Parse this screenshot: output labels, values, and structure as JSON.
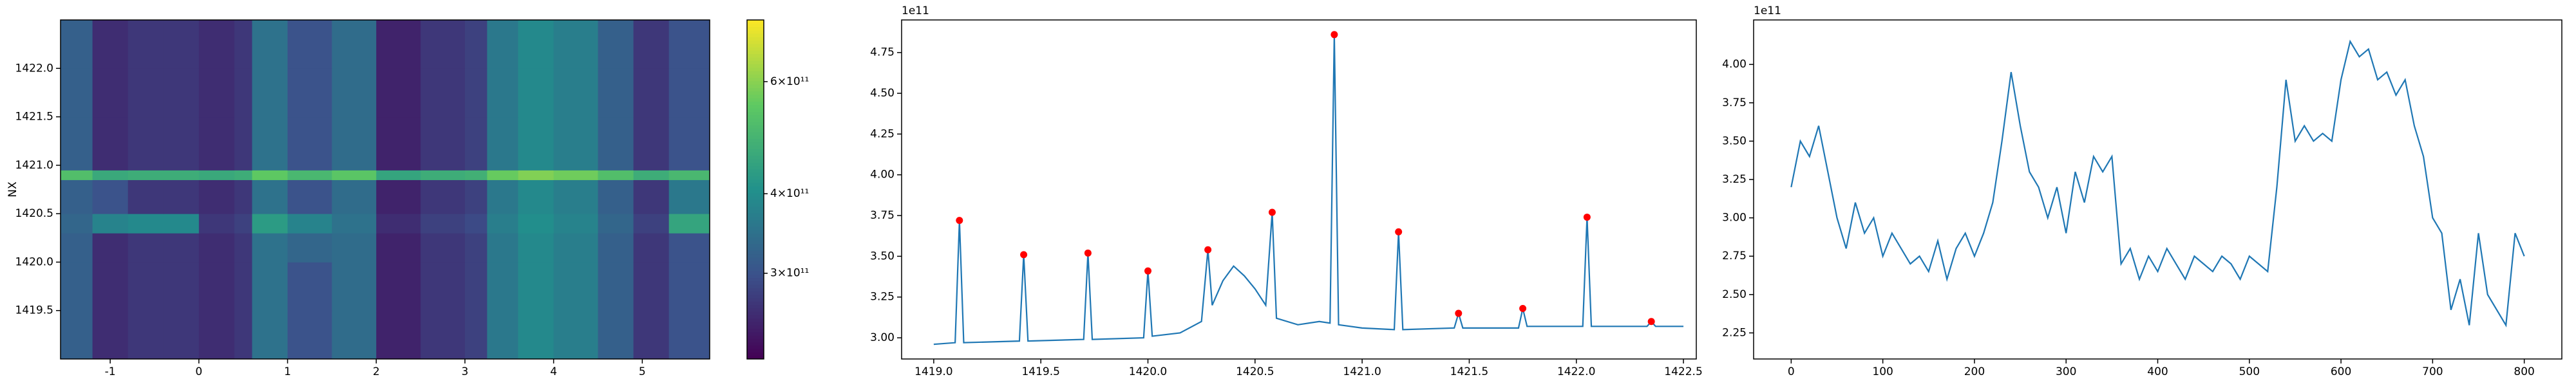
{
  "chart_data": [
    {
      "type": "heatmap",
      "ylabel": "NX",
      "x_edges": [
        -1.56,
        -1.2,
        -0.8,
        -0.4,
        0,
        0.4,
        0.6,
        1.0,
        1.5,
        2.0,
        2.5,
        3.0,
        3.25,
        3.6,
        4.0,
        4.5,
        4.9,
        5.3,
        5.76
      ],
      "y_edges": [
        1419.0,
        1419.5,
        1420.0,
        1420.3,
        1420.5,
        1420.85,
        1420.95,
        1421.5,
        1422.0,
        1422.5
      ],
      "z": [
        [
          320000000000.0,
          260000000000.0,
          270000000000.0,
          270000000000.0,
          260000000000.0,
          270000000000.0,
          350000000000.0,
          300000000000.0,
          340000000000.0,
          250000000000.0,
          270000000000.0,
          280000000000.0,
          360000000000.0,
          390000000000.0,
          370000000000.0,
          320000000000.0,
          270000000000.0,
          300000000000.0
        ],
        [
          320000000000.0,
          260000000000.0,
          270000000000.0,
          270000000000.0,
          260000000000.0,
          270000000000.0,
          350000000000.0,
          300000000000.0,
          340000000000.0,
          250000000000.0,
          270000000000.0,
          280000000000.0,
          360000000000.0,
          390000000000.0,
          370000000000.0,
          320000000000.0,
          270000000000.0,
          300000000000.0
        ],
        [
          320000000000.0,
          260000000000.0,
          270000000000.0,
          270000000000.0,
          260000000000.0,
          270000000000.0,
          350000000000.0,
          330000000000.0,
          340000000000.0,
          250000000000.0,
          270000000000.0,
          280000000000.0,
          360000000000.0,
          390000000000.0,
          370000000000.0,
          320000000000.0,
          270000000000.0,
          300000000000.0
        ],
        [
          330000000000.0,
          380000000000.0,
          390000000000.0,
          390000000000.0,
          270000000000.0,
          280000000000.0,
          430000000000.0,
          380000000000.0,
          350000000000.0,
          260000000000.0,
          280000000000.0,
          290000000000.0,
          370000000000.0,
          400000000000.0,
          380000000000.0,
          330000000000.0,
          280000000000.0,
          450000000000.0
        ],
        [
          320000000000.0,
          300000000000.0,
          270000000000.0,
          270000000000.0,
          260000000000.0,
          270000000000.0,
          350000000000.0,
          300000000000.0,
          340000000000.0,
          250000000000.0,
          270000000000.0,
          280000000000.0,
          360000000000.0,
          390000000000.0,
          370000000000.0,
          320000000000.0,
          270000000000.0,
          360000000000.0
        ],
        [
          520000000000.0,
          460000000000.0,
          470000000000.0,
          470000000000.0,
          460000000000.0,
          470000000000.0,
          550000000000.0,
          500000000000.0,
          540000000000.0,
          450000000000.0,
          470000000000.0,
          480000000000.0,
          560000000000.0,
          590000000000.0,
          570000000000.0,
          520000000000.0,
          470000000000.0,
          500000000000.0
        ],
        [
          320000000000.0,
          260000000000.0,
          270000000000.0,
          270000000000.0,
          260000000000.0,
          270000000000.0,
          350000000000.0,
          300000000000.0,
          340000000000.0,
          250000000000.0,
          270000000000.0,
          280000000000.0,
          360000000000.0,
          390000000000.0,
          370000000000.0,
          320000000000.0,
          270000000000.0,
          300000000000.0
        ],
        [
          320000000000.0,
          260000000000.0,
          270000000000.0,
          270000000000.0,
          260000000000.0,
          270000000000.0,
          350000000000.0,
          300000000000.0,
          340000000000.0,
          250000000000.0,
          270000000000.0,
          280000000000.0,
          360000000000.0,
          390000000000.0,
          370000000000.0,
          320000000000.0,
          270000000000.0,
          300000000000.0
        ],
        [
          320000000000.0,
          260000000000.0,
          270000000000.0,
          270000000000.0,
          260000000000.0,
          270000000000.0,
          350000000000.0,
          300000000000.0,
          340000000000.0,
          250000000000.0,
          270000000000.0,
          280000000000.0,
          360000000000.0,
          390000000000.0,
          370000000000.0,
          320000000000.0,
          270000000000.0,
          300000000000.0
        ]
      ],
      "xlim": [
        -1.56,
        5.76
      ],
      "ylim": [
        1419.0,
        1422.5
      ],
      "xticks": [
        -1,
        0,
        1,
        2,
        3,
        4,
        5
      ],
      "yticks": [
        1419.5,
        {
          "value": 1420,
          "label": "1420.0"
        },
        1420.5,
        {
          "value": 1421,
          "label": "1421.0"
        },
        1421.5,
        {
          "value": 1422,
          "label": "1422.0"
        }
      ],
      "colormap": "viridis",
      "color_scale": "log",
      "clim": [
        220000000000.0,
        750000000000.0
      ],
      "cticks": [
        {
          "value": 300000000000.0,
          "label": "3×10¹¹"
        },
        {
          "value": 400000000000.0,
          "label": "4×10¹¹"
        },
        {
          "value": 600000000000.0,
          "label": "6×10¹¹"
        }
      ]
    },
    {
      "type": "line",
      "y_offset_label": "1e11",
      "series": [
        {
          "color": "#1f77b4",
          "mode": "line",
          "x": [
            1419.0,
            1419.1,
            1419.12,
            1419.14,
            1419.4,
            1419.42,
            1419.44,
            1419.7,
            1419.72,
            1419.74,
            1419.98,
            1420.0,
            1420.02,
            1420.15,
            1420.25,
            1420.28,
            1420.3,
            1420.35,
            1420.4,
            1420.45,
            1420.5,
            1420.55,
            1420.58,
            1420.6,
            1420.7,
            1420.8,
            1420.85,
            1420.87,
            1420.89,
            1421.0,
            1421.15,
            1421.17,
            1421.19,
            1421.43,
            1421.45,
            1421.47,
            1421.73,
            1421.75,
            1421.77,
            1422.03,
            1422.05,
            1422.07,
            1422.33,
            1422.35,
            1422.37,
            1422.5
          ],
          "values": [
            2.96,
            2.97,
            3.72,
            2.97,
            2.98,
            3.51,
            2.98,
            2.99,
            3.52,
            2.99,
            3.0,
            3.41,
            3.01,
            3.03,
            3.1,
            3.54,
            3.2,
            3.35,
            3.44,
            3.38,
            3.3,
            3.2,
            3.77,
            3.12,
            3.08,
            3.1,
            3.09,
            4.86,
            3.08,
            3.06,
            3.05,
            3.65,
            3.05,
            3.06,
            3.15,
            3.06,
            3.06,
            3.18,
            3.07,
            3.07,
            3.74,
            3.07,
            3.07,
            3.1,
            3.07,
            3.07
          ]
        },
        {
          "color": "#ff0000",
          "mode": "markers",
          "x": [
            1419.12,
            1419.42,
            1419.72,
            1420.0,
            1420.28,
            1420.58,
            1420.87,
            1421.17,
            1421.45,
            1421.75,
            1422.05,
            1422.35
          ],
          "values": [
            3.72,
            3.51,
            3.52,
            3.41,
            3.54,
            3.77,
            4.86,
            3.65,
            3.15,
            3.18,
            3.74,
            3.1
          ]
        }
      ],
      "xlim": [
        1418.85,
        1422.56
      ],
      "ylim": [
        2.87,
        4.95
      ],
      "xticks": [
        {
          "value": 1419,
          "label": "1419.0"
        },
        1419.5,
        {
          "value": 1420,
          "label": "1420.0"
        },
        1420.5,
        {
          "value": 1421,
          "label": "1421.0"
        },
        1421.5,
        {
          "value": 1422,
          "label": "1422.0"
        },
        1422.5
      ],
      "yticks": [
        {
          "value": 3,
          "label": "3.00"
        },
        3.25,
        {
          "value": 3.5,
          "label": "3.50"
        },
        3.75,
        {
          "value": 4,
          "label": "4.00"
        },
        4.25,
        {
          "value": 4.5,
          "label": "4.50"
        },
        4.75
      ]
    },
    {
      "type": "line",
      "y_offset_label": "1e11",
      "x": [
        0,
        10,
        20,
        30,
        40,
        50,
        60,
        70,
        80,
        90,
        100,
        110,
        120,
        130,
        140,
        150,
        160,
        170,
        180,
        190,
        200,
        210,
        220,
        230,
        240,
        250,
        260,
        270,
        280,
        290,
        300,
        310,
        320,
        330,
        340,
        350,
        360,
        370,
        380,
        390,
        400,
        410,
        420,
        430,
        440,
        450,
        460,
        470,
        480,
        490,
        500,
        510,
        520,
        530,
        540,
        550,
        560,
        570,
        580,
        590,
        600,
        610,
        620,
        630,
        640,
        650,
        660,
        670,
        680,
        690,
        700,
        710,
        720,
        730,
        740,
        750,
        760,
        770,
        780,
        790,
        800
      ],
      "series": [
        {
          "color": "#1f77b4",
          "mode": "line",
          "values": [
            3.2,
            3.5,
            3.4,
            3.6,
            3.3,
            3.0,
            2.8,
            3.1,
            2.9,
            3.0,
            2.75,
            2.9,
            2.8,
            2.7,
            2.75,
            2.65,
            2.85,
            2.6,
            2.8,
            2.9,
            2.75,
            2.9,
            3.1,
            3.5,
            3.95,
            3.6,
            3.3,
            3.2,
            3.0,
            3.2,
            2.9,
            3.3,
            3.1,
            3.4,
            3.3,
            3.4,
            2.7,
            2.8,
            2.6,
            2.75,
            2.65,
            2.8,
            2.7,
            2.6,
            2.75,
            2.7,
            2.65,
            2.75,
            2.7,
            2.6,
            2.75,
            2.7,
            2.65,
            3.2,
            3.9,
            3.5,
            3.6,
            3.5,
            3.55,
            3.5,
            3.9,
            4.15,
            4.05,
            4.1,
            3.9,
            3.95,
            3.8,
            3.9,
            3.6,
            3.4,
            3.0,
            2.9,
            2.4,
            2.6,
            2.3,
            2.9,
            2.5,
            2.4,
            2.3,
            2.9,
            2.75
          ]
        }
      ],
      "xlim": [
        -41,
        841
      ],
      "ylim": [
        2.08,
        4.29
      ],
      "xticks": [
        0,
        100,
        200,
        300,
        400,
        500,
        600,
        700,
        800
      ],
      "yticks": [
        2.25,
        {
          "value": 2.5,
          "label": "2.50"
        },
        2.75,
        {
          "value": 3,
          "label": "3.00"
        },
        3.25,
        {
          "value": 3.5,
          "label": "3.50"
        },
        3.75,
        {
          "value": 4,
          "label": "4.00"
        }
      ]
    }
  ]
}
